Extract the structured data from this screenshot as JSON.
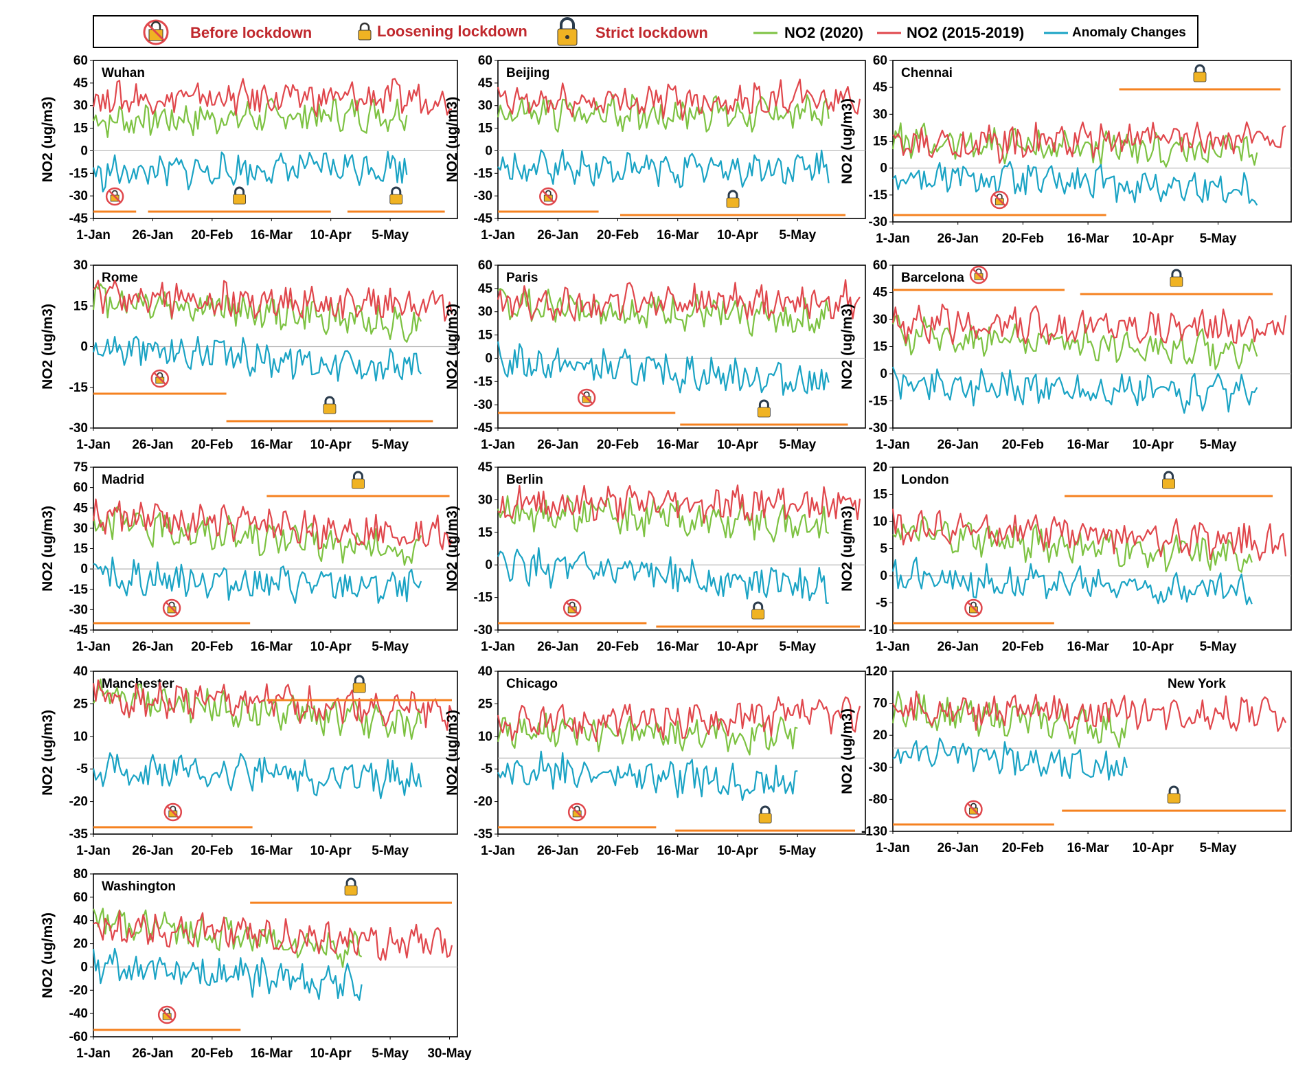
{
  "legend": {
    "before_label": "Before lockdown",
    "loosening_label": "Loosening lockdown",
    "strict_label": "Strict lockdown",
    "no2_2020_label": "NO2 (2020)",
    "no2_hist_label": "NO2 (2015-2019)",
    "anomaly_label": "Anomaly Changes",
    "colors": {
      "no2_2020": "#7dc242",
      "no2_hist": "#e0474c",
      "anomaly": "#1aa3c4",
      "phase_line": "#f58220",
      "label_red": "#c0282d"
    }
  },
  "y_axis_label": "NO2 (ug/m3)",
  "x_ticks": [
    "1-Jan",
    "26-Jan",
    "20-Feb",
    "16-Mar",
    "10-Apr",
    "5-May"
  ],
  "x_ticks_washington": [
    "1-Jan",
    "26-Jan",
    "20-Feb",
    "16-Mar",
    "10-Apr",
    "5-May",
    "30-May"
  ],
  "chart_data": [
    {
      "type": "line",
      "city": "Wuhan",
      "title": "Wuhan",
      "ylim": [
        -45,
        60
      ],
      "yticks": [
        60,
        45,
        30,
        15,
        0,
        -15,
        -30,
        -45
      ],
      "series": [
        {
          "name": "NO2 (2020)",
          "mean_start": 20,
          "mean_end": 25,
          "end_day": 132
        },
        {
          "name": "NO2 (2015-2019)",
          "mean_start": 35,
          "mean_end": 35,
          "end_day": 151
        },
        {
          "name": "Anomaly Changes",
          "mean_start": -15,
          "mean_end": -10,
          "end_day": 132
        }
      ],
      "phases": [
        {
          "name": "Before lockdown",
          "start_day": 0,
          "end_day": 18
        },
        {
          "name": "Strict lockdown",
          "start_day": 23,
          "end_day": 100
        },
        {
          "name": "Loosening lockdown",
          "start_day": 107,
          "end_day": 148
        }
      ]
    },
    {
      "type": "line",
      "city": "Beijing",
      "title": "Beijing",
      "ylim": [
        -45,
        60
      ],
      "yticks": [
        60,
        45,
        30,
        15,
        0,
        -15,
        -30,
        -45
      ],
      "series": [
        {
          "name": "NO2 (2020)",
          "mean_start": 25,
          "mean_end": 25,
          "end_day": 138
        },
        {
          "name": "NO2 (2015-2019)",
          "mean_start": 32,
          "mean_end": 35,
          "end_day": 151
        },
        {
          "name": "Anomaly Changes",
          "mean_start": -12,
          "mean_end": -12,
          "end_day": 138
        }
      ],
      "phases": [
        {
          "name": "Before lockdown",
          "start_day": 0,
          "end_day": 42
        },
        {
          "name": "Strict lockdown",
          "start_day": 51,
          "end_day": 145
        }
      ]
    },
    {
      "type": "line",
      "city": "Chennai",
      "title": "Chennai",
      "ylim": [
        -30,
        60
      ],
      "yticks": [
        60,
        45,
        30,
        15,
        0,
        -15,
        -30
      ],
      "series": [
        {
          "name": "NO2 (2020)",
          "mean_start": 15,
          "mean_end": 8,
          "end_day": 140
        },
        {
          "name": "NO2 (2015-2019)",
          "mean_start": 12,
          "mean_end": 18,
          "end_day": 151
        },
        {
          "name": "Anomaly Changes",
          "mean_start": -5,
          "mean_end": -12,
          "end_day": 140
        }
      ],
      "phases": [
        {
          "name": "Before lockdown",
          "start_day": 0,
          "end_day": 82
        },
        {
          "name": "Strict lockdown",
          "start_day": 87,
          "end_day": 149
        }
      ]
    },
    {
      "type": "line",
      "city": "Rome",
      "title": "Rome",
      "ylim": [
        -30,
        30
      ],
      "yticks": [
        30,
        15,
        0,
        -15,
        -30
      ],
      "series": [
        {
          "name": "NO2 (2020)",
          "mean_start": 18,
          "mean_end": 8,
          "end_day": 138
        },
        {
          "name": "NO2 (2015-2019)",
          "mean_start": 18,
          "mean_end": 15,
          "end_day": 151
        },
        {
          "name": "Anomaly Changes",
          "mean_start": 0,
          "mean_end": -8,
          "end_day": 138
        }
      ],
      "phases": [
        {
          "name": "Before lockdown",
          "start_day": 0,
          "end_day": 56
        },
        {
          "name": "Strict lockdown",
          "start_day": 56,
          "end_day": 143
        }
      ]
    },
    {
      "type": "line",
      "city": "Paris",
      "title": "Paris",
      "ylim": [
        -45,
        60
      ],
      "yticks": [
        60,
        45,
        30,
        15,
        0,
        -15,
        -30,
        -45
      ],
      "series": [
        {
          "name": "NO2 (2020)",
          "mean_start": 35,
          "mean_end": 25,
          "end_day": 138
        },
        {
          "name": "NO2 (2015-2019)",
          "mean_start": 35,
          "mean_end": 38,
          "end_day": 151
        },
        {
          "name": "Anomaly Changes",
          "mean_start": -2,
          "mean_end": -15,
          "end_day": 138
        }
      ],
      "phases": [
        {
          "name": "Before lockdown",
          "start_day": 0,
          "end_day": 74
        },
        {
          "name": "Strict lockdown",
          "start_day": 76,
          "end_day": 146
        }
      ]
    },
    {
      "type": "line",
      "city": "Barcelona",
      "title": "Barcelona",
      "ylim": [
        -30,
        60
      ],
      "yticks": [
        60,
        45,
        30,
        15,
        0,
        -15,
        -30
      ],
      "series": [
        {
          "name": "NO2 (2020)",
          "mean_start": 22,
          "mean_end": 12,
          "end_day": 140
        },
        {
          "name": "NO2 (2015-2019)",
          "mean_start": 28,
          "mean_end": 25,
          "end_day": 151
        },
        {
          "name": "Anomaly Changes",
          "mean_start": -5,
          "mean_end": -12,
          "end_day": 140
        }
      ],
      "phases": [
        {
          "name": "Before lockdown",
          "start_day": 0,
          "end_day": 66
        },
        {
          "name": "Strict lockdown",
          "start_day": 72,
          "end_day": 146
        }
      ]
    },
    {
      "type": "line",
      "city": "Madrid",
      "title": "Madrid",
      "ylim": [
        -45,
        75
      ],
      "yticks": [
        75,
        60,
        45,
        30,
        15,
        0,
        -15,
        -30,
        -45
      ],
      "series": [
        {
          "name": "NO2 (2020)",
          "mean_start": 35,
          "mean_end": 12,
          "end_day": 138
        },
        {
          "name": "NO2 (2015-2019)",
          "mean_start": 38,
          "mean_end": 25,
          "end_day": 151
        },
        {
          "name": "Anomaly Changes",
          "mean_start": -5,
          "mean_end": -15,
          "end_day": 138
        }
      ],
      "phases": [
        {
          "name": "Before lockdown",
          "start_day": 0,
          "end_day": 66
        },
        {
          "name": "Strict lockdown",
          "start_day": 73,
          "end_day": 150
        }
      ]
    },
    {
      "type": "line",
      "city": "Berlin",
      "title": "Berlin",
      "ylim": [
        -30,
        45
      ],
      "yticks": [
        45,
        30,
        15,
        0,
        -15,
        -30
      ],
      "series": [
        {
          "name": "NO2 (2020)",
          "mean_start": 25,
          "mean_end": 18,
          "end_day": 138
        },
        {
          "name": "NO2 (2015-2019)",
          "mean_start": 28,
          "mean_end": 28,
          "end_day": 151
        },
        {
          "name": "Anomaly Changes",
          "mean_start": 0,
          "mean_end": -10,
          "end_day": 138
        }
      ],
      "phases": [
        {
          "name": "Before lockdown",
          "start_day": 0,
          "end_day": 62
        },
        {
          "name": "Strict lockdown",
          "start_day": 66,
          "end_day": 151
        }
      ]
    },
    {
      "type": "line",
      "city": "London",
      "title": "London",
      "ylim": [
        -10,
        20
      ],
      "yticks": [
        20,
        15,
        10,
        5,
        0,
        -5,
        -10
      ],
      "series": [
        {
          "name": "NO2 (2020)",
          "mean_start": 8,
          "mean_end": 3,
          "end_day": 138
        },
        {
          "name": "NO2 (2015-2019)",
          "mean_start": 9,
          "mean_end": 6,
          "end_day": 151
        },
        {
          "name": "Anomaly Changes",
          "mean_start": 0,
          "mean_end": -3,
          "end_day": 138
        }
      ],
      "phases": [
        {
          "name": "Before lockdown",
          "start_day": 0,
          "end_day": 62
        },
        {
          "name": "Strict lockdown",
          "start_day": 66,
          "end_day": 146
        }
      ]
    },
    {
      "type": "line",
      "city": "Manchester",
      "title": "Manchester",
      "ylim": [
        -35,
        40
      ],
      "yticks": [
        40,
        25,
        10,
        -5,
        -20,
        -35
      ],
      "series": [
        {
          "name": "NO2 (2020)",
          "mean_start": 28,
          "mean_end": 15,
          "end_day": 138
        },
        {
          "name": "NO2 (2015-2019)",
          "mean_start": 28,
          "mean_end": 22,
          "end_day": 151
        },
        {
          "name": "Anomaly Changes",
          "mean_start": -5,
          "mean_end": -10,
          "end_day": 138
        }
      ],
      "phases": [
        {
          "name": "Before lockdown",
          "start_day": 0,
          "end_day": 67
        },
        {
          "name": "Strict lockdown",
          "start_day": 73,
          "end_day": 151
        }
      ]
    },
    {
      "type": "line",
      "city": "Chicago",
      "title": "Chicago",
      "ylim": [
        -35,
        40
      ],
      "yticks": [
        40,
        25,
        10,
        -5,
        -20,
        -35
      ],
      "series": [
        {
          "name": "NO2 (2020)",
          "mean_start": 12,
          "mean_end": 10,
          "end_day": 125
        },
        {
          "name": "NO2 (2015-2019)",
          "mean_start": 15,
          "mean_end": 20,
          "end_day": 151
        },
        {
          "name": "Anomaly Changes",
          "mean_start": -5,
          "mean_end": -12,
          "end_day": 125
        }
      ],
      "phases": [
        {
          "name": "Before lockdown",
          "start_day": 0,
          "end_day": 66
        },
        {
          "name": "Strict lockdown",
          "start_day": 74,
          "end_day": 149
        }
      ]
    },
    {
      "type": "line",
      "city": "New York",
      "title": "New York",
      "ylim": [
        -130,
        120
      ],
      "yticks": [
        120,
        70,
        20,
        -30,
        -80,
        -130
      ],
      "series": [
        {
          "name": "NO2 (2020)",
          "mean_start": 60,
          "mean_end": 30,
          "end_day": 90
        },
        {
          "name": "NO2 (2015-2019)",
          "mean_start": 60,
          "mean_end": 55,
          "end_day": 151
        },
        {
          "name": "Anomaly Changes",
          "mean_start": -5,
          "mean_end": -30,
          "end_day": 90
        }
      ],
      "phases": [
        {
          "name": "Before lockdown",
          "start_day": 0,
          "end_day": 62
        },
        {
          "name": "Strict lockdown",
          "start_day": 65,
          "end_day": 151
        }
      ]
    },
    {
      "type": "line",
      "city": "Washington",
      "title": "Washington",
      "ylim": [
        -60,
        80
      ],
      "yticks": [
        80,
        60,
        40,
        20,
        0,
        -20,
        -40,
        -60
      ],
      "series": [
        {
          "name": "NO2 (2020)",
          "mean_start": 40,
          "mean_end": 15,
          "end_day": 113
        },
        {
          "name": "NO2 (2015-2019)",
          "mean_start": 35,
          "mean_end": 18,
          "end_day": 151
        },
        {
          "name": "Anomaly Changes",
          "mean_start": 0,
          "mean_end": -15,
          "end_day": 113
        }
      ],
      "phases": [
        {
          "name": "Before lockdown",
          "start_day": 0,
          "end_day": 62
        },
        {
          "name": "Strict lockdown",
          "start_day": 66,
          "end_day": 151
        }
      ]
    }
  ]
}
